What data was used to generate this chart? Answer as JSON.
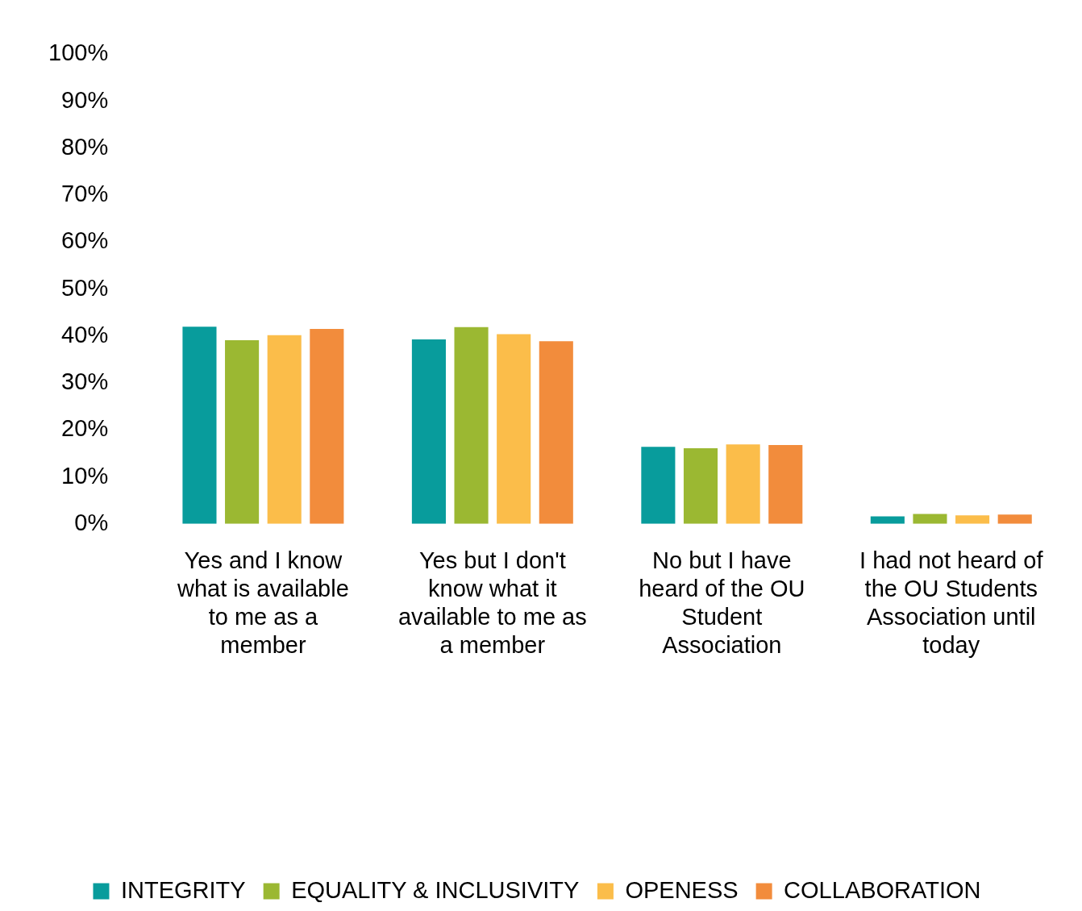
{
  "chart_data": {
    "type": "bar",
    "categories": [
      "Yes and I know what is available to me as a member",
      "Yes but I don't know what it available to me as a member",
      "No but I have heard of the OU Student Association",
      "I had not heard of the OU Students Association until today"
    ],
    "series": [
      {
        "name": "INTEGRITY",
        "color": "#089c9c",
        "values": [
          42,
          39.3,
          16.4,
          1.6
        ]
      },
      {
        "name": "EQUALITY & INCLUSIVITY",
        "color": "#9bb832",
        "values": [
          39.1,
          41.9,
          16.1,
          2.1
        ]
      },
      {
        "name": "OPENESS",
        "color": "#fbbd4a",
        "values": [
          40.2,
          40.4,
          16.9,
          1.8
        ]
      },
      {
        "name": "COLLABORATION",
        "color": "#f28c3c",
        "values": [
          41.5,
          38.9,
          16.8,
          2
        ]
      }
    ],
    "ylim": [
      0,
      100
    ],
    "yticks": [
      {
        "value": 0,
        "label": "0%"
      },
      {
        "value": 10,
        "label": "10%"
      },
      {
        "value": 20,
        "label": "20%"
      },
      {
        "value": 30,
        "label": "30%"
      },
      {
        "value": 40,
        "label": "40%"
      },
      {
        "value": 50,
        "label": "50%"
      },
      {
        "value": 60,
        "label": "60%"
      },
      {
        "value": 70,
        "label": "70%"
      },
      {
        "value": 80,
        "label": "80%"
      },
      {
        "value": 90,
        "label": "90%"
      },
      {
        "value": 100,
        "label": "100%"
      }
    ],
    "grid": false,
    "legend": "bottom"
  }
}
